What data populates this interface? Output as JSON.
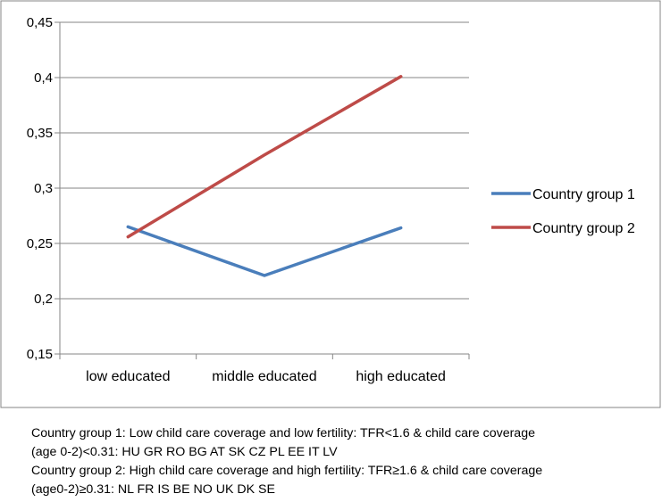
{
  "chart_data": {
    "type": "line",
    "categories": [
      "low educated",
      "middle educated",
      "high educated"
    ],
    "series": [
      {
        "name": "Country group 1",
        "values": [
          0.265,
          0.221,
          0.264
        ],
        "color": "#4a7ebb"
      },
      {
        "name": "Country group 2",
        "values": [
          0.256,
          0.33,
          0.401
        ],
        "color": "#be4b48"
      }
    ],
    "ylim": [
      0.15,
      0.45
    ],
    "yticks": [
      "0,45",
      "0,4",
      "0,35",
      "0,3",
      "0,25",
      "0,2",
      "0,15"
    ],
    "ytick_values": [
      0.45,
      0.4,
      0.35,
      0.3,
      0.25,
      0.2,
      0.15
    ],
    "grid": true,
    "legend_position": "right"
  },
  "notes": [
    "Country group 1: Low child care coverage and low fertility: TFR<1.6 & child care coverage",
    "(age 0-2)<0.31: HU GR RO BG AT SK  CZ  PL  EE IT LV",
    "Country group 2: High child care coverage and high fertility: TFR≥1.6 & child care coverage",
    "(age0-2)≥0.31: NL FR IS BE  NO UK  DK SE"
  ]
}
